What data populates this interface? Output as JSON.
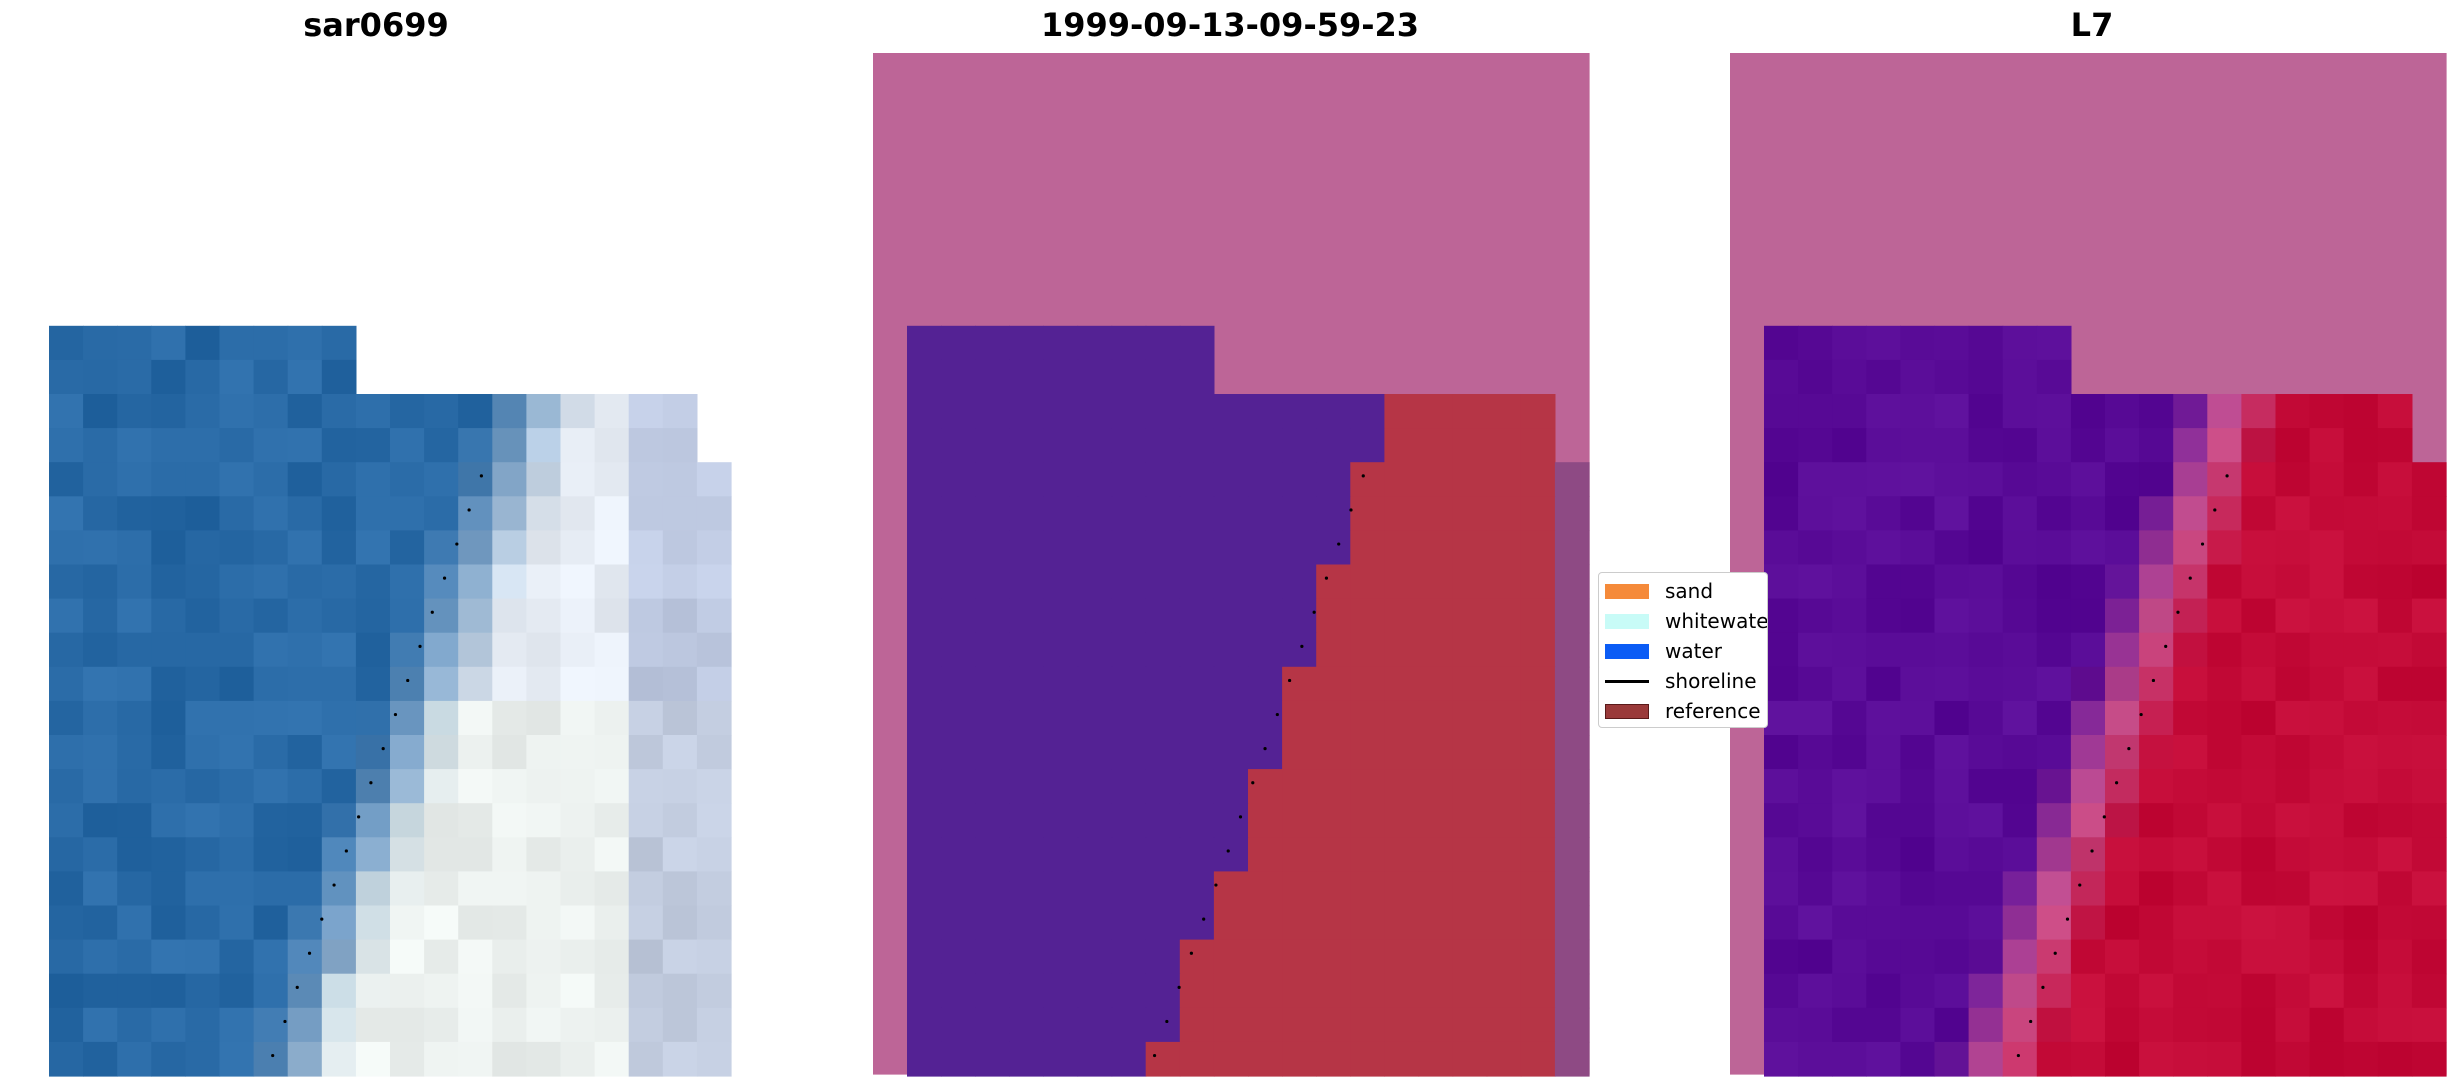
{
  "panels": [
    {
      "title": "sar0699",
      "kind": "rgb"
    },
    {
      "title": "1999-09-13-09-59-23",
      "kind": "classified"
    },
    {
      "title": "L7",
      "kind": "probability"
    }
  ],
  "legend": {
    "items": [
      {
        "label": "sand",
        "color": "#f58a3a",
        "type": "patch"
      },
      {
        "label": "whitewater",
        "color": "#c8fbf7",
        "type": "patch"
      },
      {
        "label": "water",
        "color": "#0b5cf5",
        "type": "patch"
      },
      {
        "label": "shoreline",
        "color": "#000000",
        "type": "line"
      },
      {
        "label": "reference",
        "color": "#9a3a3a",
        "type": "patch"
      }
    ]
  },
  "colors": {
    "nodata": "#bd6597",
    "water_class": "#542294",
    "reference_class": "#b63546",
    "shoreline_dots": "#000000"
  }
}
